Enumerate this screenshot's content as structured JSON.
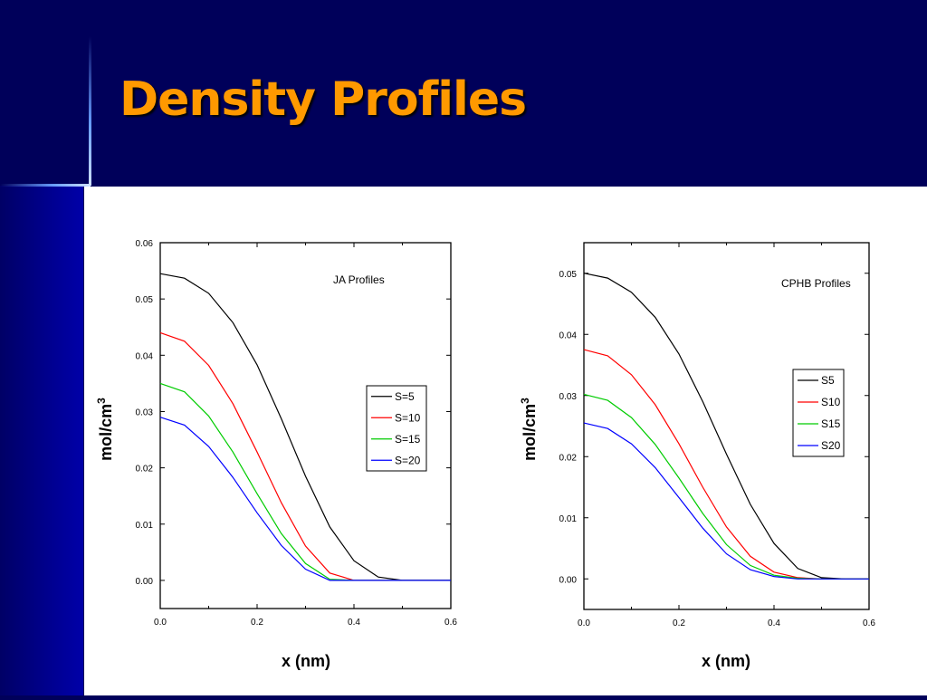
{
  "slide": {
    "title": "Density Profiles",
    "colors": {
      "background": "#00005a",
      "title": "#ff9900",
      "panel": "#ffffff"
    }
  },
  "chart_data": [
    {
      "type": "line",
      "title": "",
      "annotation": "JA Profiles",
      "xlabel": "x (nm)",
      "ylabel": "mol/cm",
      "ylabel_superscript": "3",
      "xlim": [
        0.0,
        0.6
      ],
      "ylim": [
        -0.005,
        0.06
      ],
      "xticks": [
        0.0,
        0.2,
        0.4,
        0.6
      ],
      "xtick_labels": [
        "0.0",
        "0.2",
        "0.4",
        "0.6"
      ],
      "yticks": [
        0.0,
        0.01,
        0.02,
        0.03,
        0.04,
        0.05,
        0.06
      ],
      "ytick_labels": [
        "0.00",
        "0.01",
        "0.02",
        "0.03",
        "0.04",
        "0.05",
        "0.06"
      ],
      "grid": false,
      "legend_position": "middle-right",
      "x": [
        0.0,
        0.05,
        0.1,
        0.15,
        0.2,
        0.25,
        0.3,
        0.35,
        0.4,
        0.45,
        0.5,
        0.55,
        0.6
      ],
      "series": [
        {
          "name": "S=5",
          "color": "#000000",
          "values": [
            0.0545,
            0.0537,
            0.051,
            0.0458,
            0.0383,
            0.0287,
            0.0185,
            0.0095,
            0.0035,
            0.0006,
            0.0,
            0.0,
            0.0
          ]
        },
        {
          "name": "S=10",
          "color": "#ff0000",
          "values": [
            0.044,
            0.0425,
            0.0382,
            0.0314,
            0.0228,
            0.0138,
            0.0061,
            0.0013,
            0.0,
            0.0,
            0.0,
            0.0,
            0.0
          ]
        },
        {
          "name": "S=15",
          "color": "#00cc00",
          "values": [
            0.035,
            0.0335,
            0.0292,
            0.0228,
            0.0154,
            0.0083,
            0.003,
            0.0002,
            0.0,
            0.0,
            0.0,
            0.0,
            0.0
          ]
        },
        {
          "name": "S=20",
          "color": "#0000ff",
          "values": [
            0.029,
            0.0276,
            0.0238,
            0.0183,
            0.012,
            0.0062,
            0.002,
            0.0,
            0.0,
            0.0,
            0.0,
            0.0,
            0.0
          ]
        }
      ]
    },
    {
      "type": "line",
      "title": "",
      "annotation": "CPHB Profiles",
      "xlabel": "x (nm)",
      "ylabel": "mol/cm",
      "ylabel_superscript": "3",
      "xlim": [
        0.0,
        0.6
      ],
      "ylim": [
        -0.005,
        0.055
      ],
      "xticks": [
        0.0,
        0.2,
        0.4,
        0.6
      ],
      "xtick_labels": [
        "0.0",
        "0.2",
        "0.4",
        "0.6"
      ],
      "yticks": [
        0.0,
        0.01,
        0.02,
        0.03,
        0.04,
        0.05
      ],
      "ytick_labels": [
        "0.00",
        "0.01",
        "0.02",
        "0.03",
        "0.04",
        "0.05"
      ],
      "grid": false,
      "legend_position": "middle-right",
      "x": [
        0.0,
        0.05,
        0.1,
        0.15,
        0.2,
        0.25,
        0.3,
        0.35,
        0.4,
        0.45,
        0.5,
        0.55,
        0.6
      ],
      "series": [
        {
          "name": "S5",
          "color": "#000000",
          "values": [
            0.05,
            0.0492,
            0.0469,
            0.0428,
            0.0368,
            0.029,
            0.0204,
            0.0122,
            0.0058,
            0.0017,
            0.0002,
            0.0,
            0.0
          ]
        },
        {
          "name": "S10",
          "color": "#ff0000",
          "values": [
            0.0375,
            0.0365,
            0.0334,
            0.0285,
            0.0221,
            0.015,
            0.0085,
            0.0037,
            0.0011,
            0.0002,
            0.0,
            0.0,
            0.0
          ]
        },
        {
          "name": "S15",
          "color": "#00cc00",
          "values": [
            0.0302,
            0.0292,
            0.0264,
            0.022,
            0.0165,
            0.0107,
            0.0056,
            0.0022,
            0.0006,
            0.0001,
            0.0,
            0.0,
            0.0
          ]
        },
        {
          "name": "S20",
          "color": "#0000ff",
          "values": [
            0.0255,
            0.0246,
            0.0221,
            0.0182,
            0.0133,
            0.0083,
            0.0041,
            0.0015,
            0.0004,
            0.0,
            0.0,
            0.0,
            0.0
          ]
        }
      ]
    }
  ]
}
